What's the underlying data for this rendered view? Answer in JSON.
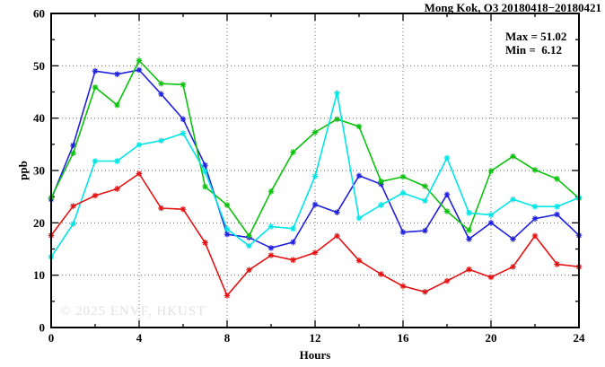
{
  "watermark": {
    "text": "© 2025 ENVF, HKUST"
  },
  "annotation": {
    "max_label": "Max = 51.02",
    "min_label": "Min =  6.12"
  },
  "colors": {
    "frame": "#000000",
    "grid": "#6e6e6e",
    "watermark": "#e2e2e2"
  },
  "chart_data": {
    "type": "line",
    "title": "Mong Kok, O3 20180418−20180421",
    "xlabel": "Hours",
    "ylabel": "ppb",
    "xlim": [
      0,
      24
    ],
    "ylim": [
      0,
      60
    ],
    "x_major_ticks": [
      0,
      4,
      8,
      12,
      16,
      20,
      24
    ],
    "x_minor_step": 2,
    "y_major_ticks": [
      0,
      10,
      20,
      30,
      40,
      50,
      60
    ],
    "y_minor_step": 5,
    "grid": "dotted lines at interior major ticks, mirrored inward ticks on all four borders",
    "legend_position": "none",
    "stat_max": 51.02,
    "stat_min": 6.12,
    "x": [
      0,
      1,
      2,
      3,
      4,
      5,
      6,
      7,
      8,
      9,
      10,
      11,
      12,
      13,
      14,
      15,
      16,
      17,
      18,
      19,
      20,
      21,
      22,
      23,
      24
    ],
    "marker": "asterisk",
    "series": [
      {
        "name": "blue",
        "color": "#2020df",
        "values": [
          24.5,
          34.8,
          49.0,
          48.4,
          49.2,
          44.6,
          39.8,
          31.0,
          17.8,
          17.2,
          15.2,
          16.3,
          23.5,
          22.0,
          29.0,
          27.4,
          18.2,
          18.5,
          25.4,
          16.9,
          20.0,
          16.9,
          20.8,
          21.6,
          17.6
        ]
      },
      {
        "name": "green",
        "color": "#0cc20c",
        "values": [
          24.8,
          33.3,
          45.9,
          42.5,
          51.0,
          46.6,
          46.4,
          26.9,
          23.4,
          17.5,
          26.0,
          33.5,
          37.3,
          39.8,
          38.4,
          27.9,
          28.8,
          27.0,
          22.2,
          18.6,
          29.9,
          32.7,
          30.1,
          28.4,
          24.7
        ]
      },
      {
        "name": "cyan",
        "color": "#00e5e5",
        "values": [
          13.5,
          19.8,
          31.8,
          31.8,
          34.9,
          35.7,
          37.1,
          29.8,
          18.8,
          15.6,
          19.3,
          18.9,
          28.9,
          44.8,
          20.9,
          23.4,
          25.7,
          24.2,
          32.4,
          21.9,
          21.5,
          24.5,
          23.1,
          23.1,
          24.8
        ]
      },
      {
        "name": "red",
        "color": "#e51212",
        "values": [
          17.6,
          23.2,
          25.2,
          26.5,
          29.4,
          22.8,
          22.6,
          16.2,
          6.1,
          11.0,
          13.8,
          12.9,
          14.3,
          17.5,
          12.8,
          10.2,
          7.9,
          6.8,
          8.9,
          11.1,
          9.6,
          11.6,
          17.5,
          12.1,
          11.6
        ]
      }
    ]
  }
}
